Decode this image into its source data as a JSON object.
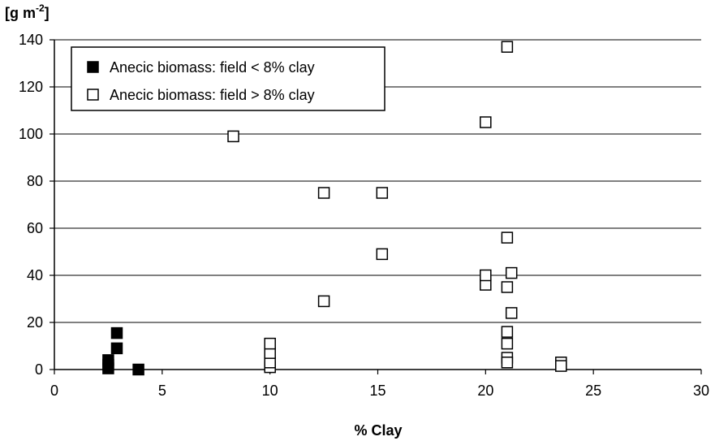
{
  "chart_data": {
    "type": "scatter",
    "title": "",
    "ylabel_main": "[g m",
    "ylabel_sup": "-2",
    "ylabel_end": "]",
    "xlabel": "% Clay",
    "xlim": [
      0,
      30
    ],
    "ylim": [
      0,
      140
    ],
    "xticks": [
      "0",
      "5",
      "10",
      "15",
      "20",
      "25",
      "30"
    ],
    "yticks": [
      "0",
      "20",
      "40",
      "60",
      "80",
      "100",
      "120",
      "140"
    ],
    "grid": "horizontal",
    "legend_position": "top-left",
    "series": [
      {
        "name": "Anecic biomass: field < 8% clay",
        "marker": "filled-square",
        "color": "#000000",
        "points": [
          {
            "x": 2.5,
            "y": 0.5
          },
          {
            "x": 2.5,
            "y": 2
          },
          {
            "x": 2.5,
            "y": 4
          },
          {
            "x": 2.9,
            "y": 9
          },
          {
            "x": 2.9,
            "y": 15.5
          },
          {
            "x": 3.9,
            "y": 0
          }
        ]
      },
      {
        "name": "Anecic biomass: field > 8% clay",
        "marker": "open-square",
        "color": "#000000",
        "points": [
          {
            "x": 8.3,
            "y": 99
          },
          {
            "x": 10,
            "y": 1
          },
          {
            "x": 10,
            "y": 3
          },
          {
            "x": 10,
            "y": 7
          },
          {
            "x": 10,
            "y": 11
          },
          {
            "x": 12.5,
            "y": 29
          },
          {
            "x": 12.5,
            "y": 75
          },
          {
            "x": 15.2,
            "y": 49
          },
          {
            "x": 15.2,
            "y": 75
          },
          {
            "x": 20,
            "y": 105
          },
          {
            "x": 20,
            "y": 36
          },
          {
            "x": 20,
            "y": 40
          },
          {
            "x": 21,
            "y": 137
          },
          {
            "x": 21,
            "y": 56
          },
          {
            "x": 21,
            "y": 35
          },
          {
            "x": 21.2,
            "y": 41
          },
          {
            "x": 21.2,
            "y": 24
          },
          {
            "x": 21,
            "y": 16
          },
          {
            "x": 21,
            "y": 11
          },
          {
            "x": 21,
            "y": 5
          },
          {
            "x": 21,
            "y": 3
          },
          {
            "x": 23.5,
            "y": 3
          },
          {
            "x": 23.5,
            "y": 1.5
          }
        ]
      }
    ]
  }
}
